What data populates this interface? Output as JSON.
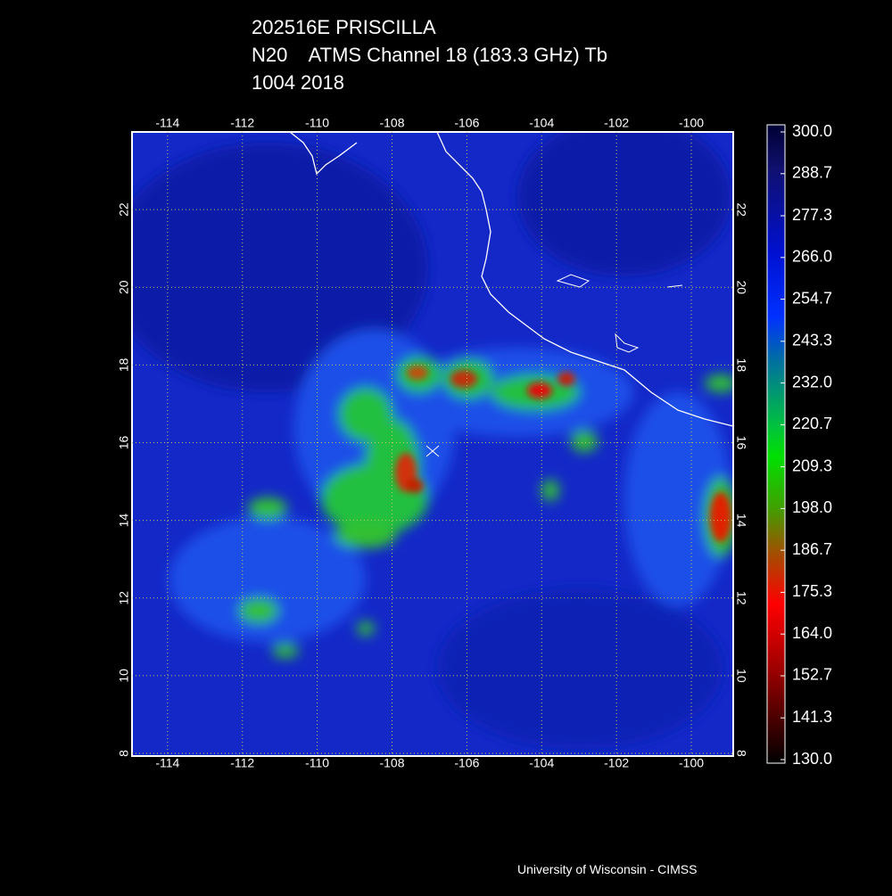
{
  "title": [
    "202516E PRISCILLA",
    "N20    ATMS Channel 18 (183.3 GHz) Tb",
    "1004 2018"
  ],
  "map": {
    "lonlim": [
      -114.95,
      -98.88
    ],
    "latlim": [
      7.93,
      24.0
    ],
    "lon_ticks": [
      -114,
      -112,
      -110,
      -108,
      -106,
      -104,
      -102,
      -100
    ],
    "lat_ticks": [
      8,
      10,
      12,
      14,
      16,
      18,
      20,
      22
    ]
  },
  "colorbar": {
    "lim": [
      130,
      300
    ],
    "ticks": [
      {
        "value": 300,
        "label": "300.0"
      },
      {
        "value": 288.7,
        "label": "288.7"
      },
      {
        "value": 277.3,
        "label": "277.3"
      },
      {
        "value": 266,
        "label": "266.0"
      },
      {
        "value": 254.7,
        "label": "254.7"
      },
      {
        "value": 243.3,
        "label": "243.3"
      },
      {
        "value": 232,
        "label": "232.0"
      },
      {
        "value": 220.7,
        "label": "220.7"
      },
      {
        "value": 209.3,
        "label": "209.3"
      },
      {
        "value": 198,
        "label": "198.0"
      },
      {
        "value": 186.7,
        "label": "186.7"
      },
      {
        "value": 175.3,
        "label": "175.3"
      },
      {
        "value": 164,
        "label": "164.0"
      },
      {
        "value": 152.7,
        "label": "152.7"
      },
      {
        "value": 141.3,
        "label": "141.3"
      },
      {
        "value": 130,
        "label": "130.0"
      }
    ]
  },
  "credit": "University of Wisconsin - CIMSS"
}
